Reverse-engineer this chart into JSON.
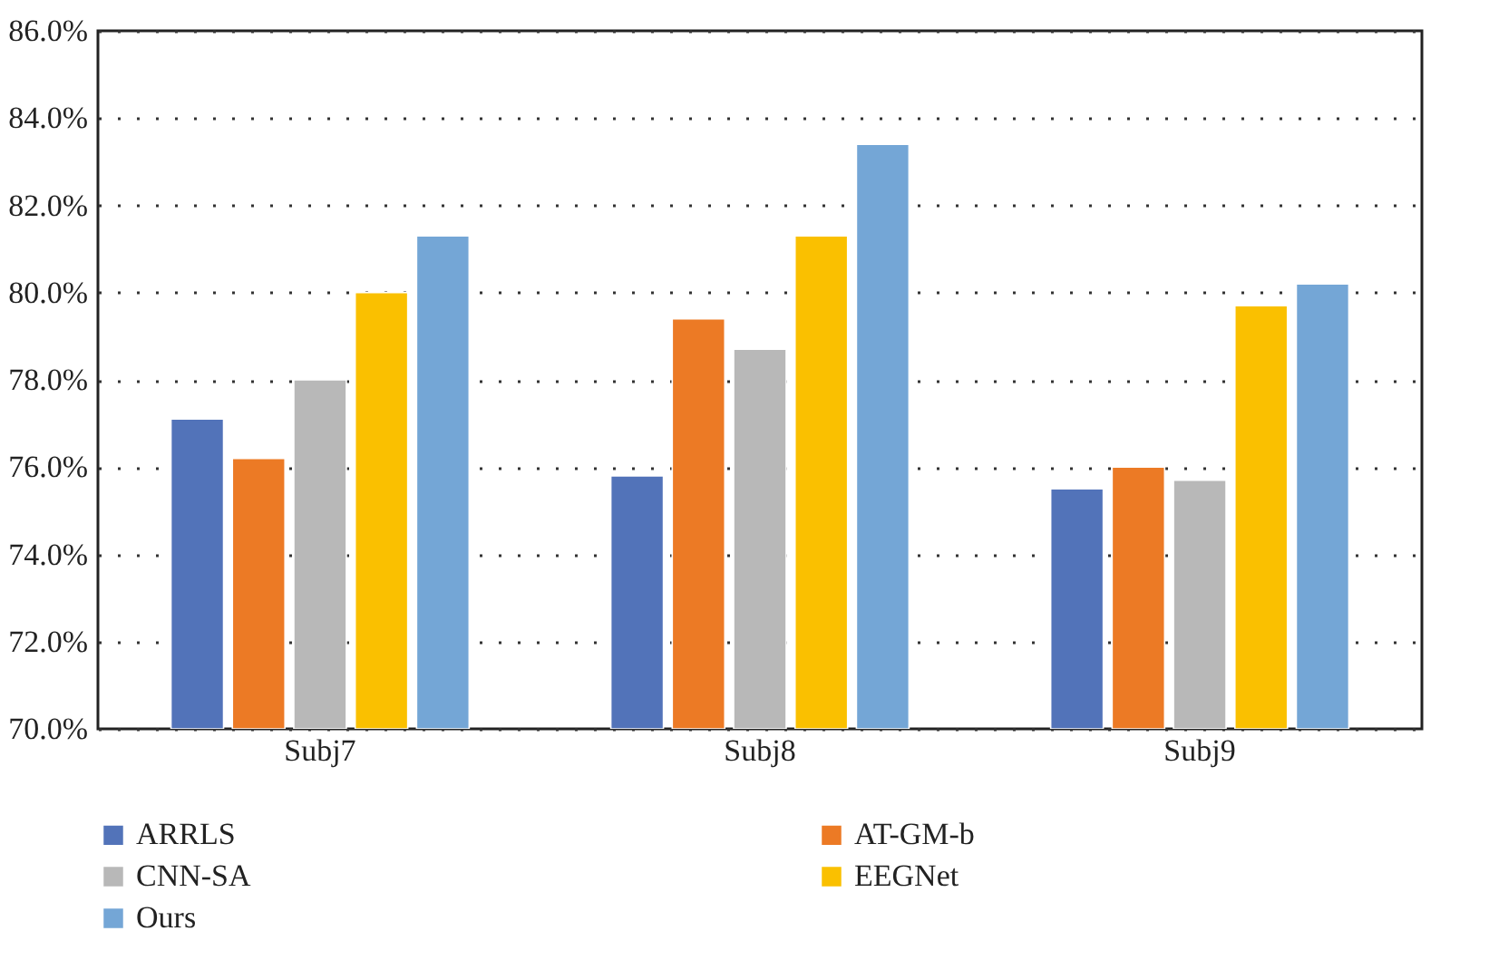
{
  "chart_data": {
    "type": "bar",
    "categories": [
      "Subj7",
      "Subj8",
      "Subj9"
    ],
    "series": [
      {
        "name": "ARRLS",
        "color": "#5273b9",
        "values": [
          77.1,
          75.8,
          75.5
        ]
      },
      {
        "name": "AT-GM-b",
        "color": "#ec7a25",
        "values": [
          76.2,
          79.4,
          76.0
        ]
      },
      {
        "name": "CNN-SA",
        "color": "#b8b8b8",
        "values": [
          78.0,
          78.7,
          75.7
        ]
      },
      {
        "name": "EEGNet",
        "color": "#fac000",
        "values": [
          80.0,
          81.3,
          79.7
        ]
      },
      {
        "name": "Ours",
        "color": "#74a6d6",
        "values": [
          81.3,
          83.4,
          80.2
        ]
      }
    ],
    "ylim": [
      70,
      86
    ],
    "yticks": [
      {
        "value": 70,
        "label": "70.0%"
      },
      {
        "value": 72,
        "label": "72.0%"
      },
      {
        "value": 74,
        "label": "74.0%"
      },
      {
        "value": 76,
        "label": "76.0%"
      },
      {
        "value": 78,
        "label": "78.0%"
      },
      {
        "value": 80,
        "label": "80.0%"
      },
      {
        "value": 82,
        "label": "82.0%"
      },
      {
        "value": 84,
        "label": "84.0%"
      },
      {
        "value": 86,
        "label": "86.0%"
      }
    ],
    "grid": "y",
    "legend": "bottom"
  }
}
